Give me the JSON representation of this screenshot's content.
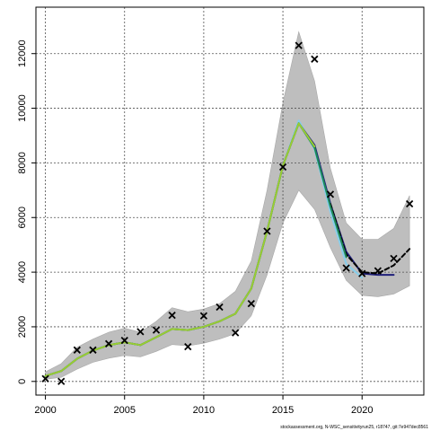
{
  "chart_data": {
    "type": "line",
    "title": "",
    "xlabel": "",
    "ylabel": "",
    "xlim": [
      1999.4,
      2023.9
    ],
    "ylim": [
      -500,
      13700
    ],
    "x_ticks": [
      2000,
      2005,
      2010,
      2015,
      2020
    ],
    "y_ticks": [
      0,
      2000,
      4000,
      6000,
      8000,
      10000,
      12000
    ],
    "x_tick_labels": [
      "2000",
      "2005",
      "2010",
      "2015",
      "2020"
    ],
    "y_tick_labels": [
      "0",
      "2000",
      "4000",
      "6000",
      "8000",
      "10000",
      "12000"
    ],
    "grid": true,
    "confidence_band": {
      "x": [
        2000,
        2001,
        2002,
        2003,
        2004,
        2005,
        2006,
        2007,
        2008,
        2009,
        2010,
        2011,
        2012,
        2013,
        2014,
        2015,
        2016,
        2017,
        2018,
        2019,
        2020,
        2021,
        2022,
        2023
      ],
      "lower": [
        80,
        150,
        450,
        700,
        850,
        950,
        900,
        1100,
        1350,
        1300,
        1400,
        1550,
        1750,
        2400,
        3900,
        5800,
        7000,
        6300,
        4900,
        3700,
        3150,
        3100,
        3200,
        3500
      ],
      "upper": [
        350,
        650,
        1250,
        1550,
        1800,
        1950,
        1800,
        2200,
        2700,
        2550,
        2650,
        2850,
        3300,
        4400,
        7000,
        10200,
        12800,
        11000,
        7800,
        5800,
        5200,
        5200,
        5600,
        6800
      ]
    },
    "observations": {
      "x": [
        2000,
        2001,
        2002,
        2003,
        2004,
        2005,
        2006,
        2007,
        2008,
        2009,
        2010,
        2011,
        2012,
        2013,
        2014,
        2015,
        2016,
        2017,
        2018,
        2019,
        2020,
        2021,
        2022,
        2023
      ],
      "y": [
        100,
        0,
        1150,
        1150,
        1380,
        1500,
        1820,
        1880,
        2420,
        1270,
        2400,
        2720,
        1780,
        2850,
        5500,
        7850,
        12300,
        11800,
        6850,
        4150,
        3950,
        4050,
        4500,
        6500
      ]
    },
    "series": [
      {
        "color": "#87ceeb",
        "x": [
          2000,
          2001,
          2002,
          2003,
          2004,
          2005,
          2006,
          2007,
          2008,
          2009,
          2010,
          2011,
          2012,
          2013,
          2014,
          2015,
          2016,
          2017,
          2018,
          2019,
          2020
        ],
        "y": [
          200,
          380,
          830,
          1130,
          1330,
          1430,
          1330,
          1620,
          1920,
          1880,
          2000,
          2200,
          2480,
          3400,
          5500,
          7900,
          9550,
          8500,
          6200,
          4300,
          3800
        ]
      },
      {
        "color": "#1f1f7a",
        "x": [
          2000,
          2001,
          2002,
          2003,
          2004,
          2005,
          2006,
          2007,
          2008,
          2009,
          2010,
          2011,
          2012,
          2013,
          2014,
          2015,
          2016,
          2017,
          2018,
          2019,
          2020,
          2021,
          2022
        ],
        "y": [
          200,
          380,
          830,
          1130,
          1330,
          1430,
          1330,
          1620,
          1920,
          1880,
          2000,
          2200,
          2480,
          3400,
          5500,
          7900,
          9450,
          8650,
          6500,
          4750,
          3950,
          3900,
          3900
        ]
      },
      {
        "color": "#000000",
        "dashed": true,
        "x": [
          2018,
          2019,
          2020,
          2021,
          2022,
          2023
        ],
        "y": [
          6500,
          4650,
          4000,
          3950,
          4250,
          4850
        ]
      },
      {
        "color": "#1e8a5a",
        "x": [
          2000,
          2001,
          2002,
          2003,
          2004,
          2005,
          2006,
          2007,
          2008,
          2009,
          2010,
          2011,
          2012,
          2013,
          2014,
          2015,
          2016,
          2017,
          2018,
          2019
        ],
        "y": [
          200,
          380,
          830,
          1130,
          1330,
          1430,
          1330,
          1620,
          1920,
          1880,
          2000,
          2200,
          2480,
          3400,
          5500,
          7900,
          9450,
          8550,
          6400,
          4550
        ]
      },
      {
        "color": "#9acd32",
        "x": [
          2000,
          2001,
          2002,
          2003,
          2004,
          2005,
          2006,
          2007,
          2008,
          2009,
          2010,
          2011,
          2012,
          2013,
          2014,
          2015,
          2016,
          2017
        ],
        "y": [
          200,
          380,
          830,
          1130,
          1330,
          1430,
          1330,
          1620,
          1920,
          1880,
          2000,
          2200,
          2480,
          3400,
          5500,
          7900,
          9450,
          8600
        ]
      }
    ],
    "colors": {
      "band": "#bebebe",
      "band_edge": "#a8a8a8",
      "grid": "#505050",
      "axis": "#000000"
    }
  },
  "footer": {
    "note": "stockassessment.org, N-WSC_sensitivityrun25, r18747, git:7e947dec8561"
  }
}
